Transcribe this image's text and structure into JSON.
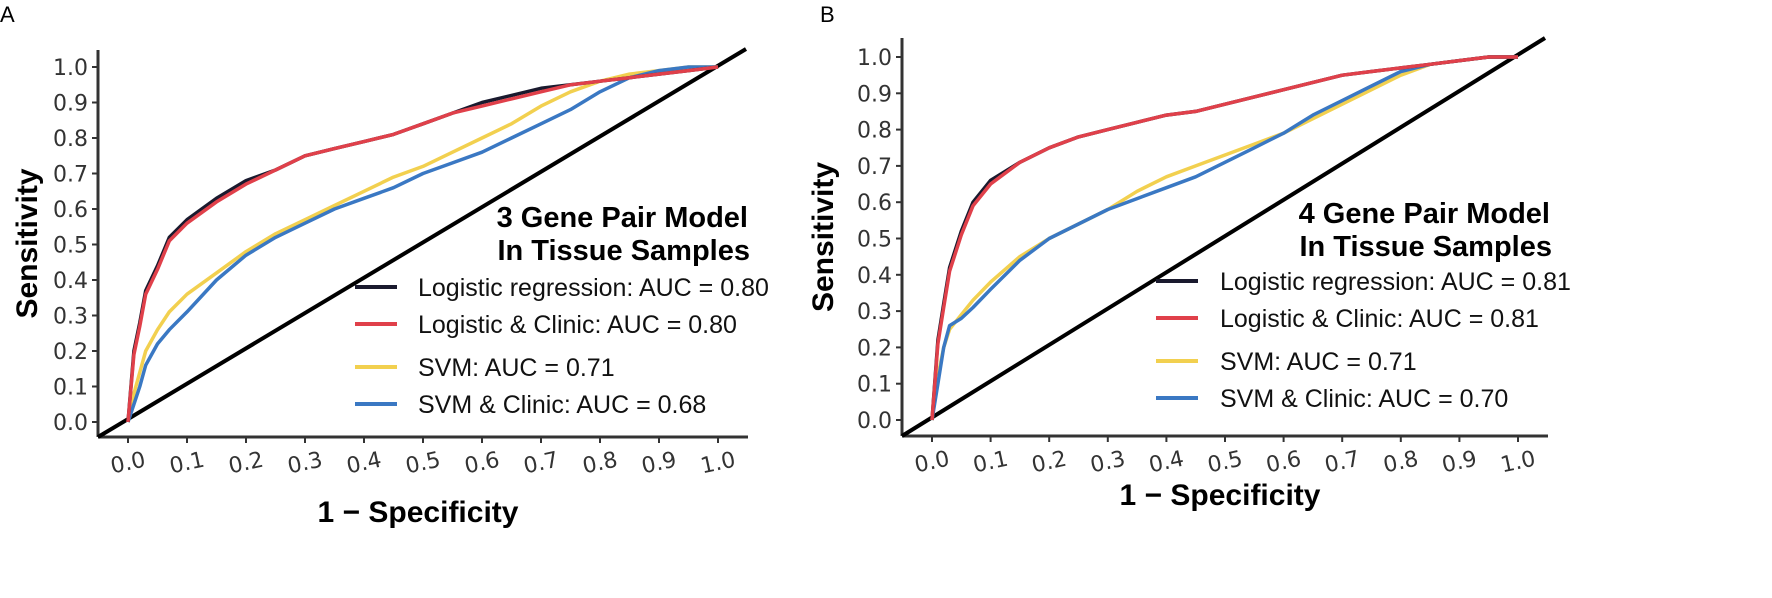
{
  "chart_data": [
    {
      "type": "line",
      "panel_label": "A",
      "title_lines": [
        "3 Gene Pair Model",
        "In Tissue Samples"
      ],
      "xlabel": "1 − Specificity",
      "ylabel": "Sensitivity",
      "xlim": [
        0,
        1
      ],
      "ylim": [
        0,
        1
      ],
      "xticks": [
        "0.0",
        "0.1",
        "0.2",
        "0.3",
        "0.4",
        "0.5",
        "0.6",
        "0.7",
        "0.8",
        "0.9",
        "1.0"
      ],
      "yticks": [
        "0.0",
        "0.1",
        "0.2",
        "0.3",
        "0.4",
        "0.5",
        "0.6",
        "0.7",
        "0.8",
        "0.9",
        "1.0"
      ],
      "legend_position": "bottom-right",
      "diagonal": true,
      "series": [
        {
          "name": "Logistic regression: AUC = 0.80",
          "color": "#1a1a2e",
          "x": [
            0,
            0.01,
            0.02,
            0.03,
            0.05,
            0.07,
            0.1,
            0.15,
            0.2,
            0.25,
            0.3,
            0.35,
            0.4,
            0.45,
            0.5,
            0.55,
            0.6,
            0.65,
            0.7,
            0.75,
            0.8,
            0.85,
            0.9,
            0.95,
            1.0
          ],
          "y": [
            0,
            0.2,
            0.28,
            0.37,
            0.44,
            0.52,
            0.57,
            0.63,
            0.68,
            0.71,
            0.75,
            0.77,
            0.79,
            0.81,
            0.84,
            0.87,
            0.9,
            0.92,
            0.94,
            0.95,
            0.96,
            0.97,
            0.98,
            0.99,
            1.0
          ]
        },
        {
          "name": "Logistic & Clinic: AUC = 0.80",
          "color": "#e0404a",
          "x": [
            0,
            0.01,
            0.02,
            0.03,
            0.05,
            0.07,
            0.1,
            0.15,
            0.2,
            0.25,
            0.3,
            0.35,
            0.4,
            0.45,
            0.5,
            0.55,
            0.6,
            0.65,
            0.7,
            0.75,
            0.8,
            0.85,
            0.9,
            0.95,
            1.0
          ],
          "y": [
            0,
            0.19,
            0.27,
            0.36,
            0.43,
            0.51,
            0.56,
            0.62,
            0.67,
            0.71,
            0.75,
            0.77,
            0.79,
            0.81,
            0.84,
            0.87,
            0.89,
            0.91,
            0.93,
            0.95,
            0.96,
            0.97,
            0.98,
            0.99,
            1.0
          ]
        },
        {
          "name": "SVM: AUC = 0.71",
          "color": "#f2d04f",
          "x": [
            0,
            0.01,
            0.02,
            0.03,
            0.05,
            0.07,
            0.1,
            0.15,
            0.2,
            0.25,
            0.3,
            0.35,
            0.4,
            0.45,
            0.5,
            0.55,
            0.6,
            0.65,
            0.7,
            0.75,
            0.8,
            0.85,
            0.9,
            0.95,
            1.0
          ],
          "y": [
            0,
            0.08,
            0.14,
            0.2,
            0.26,
            0.31,
            0.36,
            0.42,
            0.48,
            0.53,
            0.57,
            0.61,
            0.65,
            0.69,
            0.72,
            0.76,
            0.8,
            0.84,
            0.89,
            0.93,
            0.96,
            0.98,
            0.99,
            1.0,
            1.0
          ]
        },
        {
          "name": "SVM & Clinic: AUC = 0.68",
          "color": "#3a78c3",
          "x": [
            0,
            0.01,
            0.02,
            0.03,
            0.05,
            0.07,
            0.1,
            0.15,
            0.2,
            0.25,
            0.3,
            0.35,
            0.4,
            0.45,
            0.5,
            0.55,
            0.6,
            0.65,
            0.7,
            0.75,
            0.8,
            0.85,
            0.9,
            0.95,
            1.0
          ],
          "y": [
            0,
            0.05,
            0.1,
            0.16,
            0.22,
            0.26,
            0.31,
            0.4,
            0.47,
            0.52,
            0.56,
            0.6,
            0.63,
            0.66,
            0.7,
            0.73,
            0.76,
            0.8,
            0.84,
            0.88,
            0.93,
            0.97,
            0.99,
            1.0,
            1.0
          ]
        }
      ]
    },
    {
      "type": "line",
      "panel_label": "B",
      "title_lines": [
        "4 Gene Pair Model",
        "In Tissue Samples"
      ],
      "xlabel": "1 − Specificity",
      "ylabel": "Sensitivity",
      "xlim": [
        0,
        1
      ],
      "ylim": [
        0,
        1
      ],
      "xticks": [
        "0.0",
        "0.1",
        "0.2",
        "0.3",
        "0.4",
        "0.5",
        "0.6",
        "0.7",
        "0.8",
        "0.9",
        "1.0"
      ],
      "yticks": [
        "0.0",
        "0.1",
        "0.2",
        "0.3",
        "0.4",
        "0.5",
        "0.6",
        "0.7",
        "0.8",
        "0.9",
        "1.0"
      ],
      "legend_position": "bottom-right",
      "diagonal": true,
      "series": [
        {
          "name": "Logistic regression: AUC = 0.81",
          "color": "#1a1a2e",
          "x": [
            0,
            0.01,
            0.02,
            0.03,
            0.05,
            0.07,
            0.1,
            0.15,
            0.2,
            0.25,
            0.3,
            0.35,
            0.4,
            0.45,
            0.5,
            0.55,
            0.6,
            0.65,
            0.7,
            0.75,
            0.8,
            0.85,
            0.9,
            0.95,
            1.0
          ],
          "y": [
            0,
            0.22,
            0.32,
            0.42,
            0.52,
            0.6,
            0.66,
            0.71,
            0.75,
            0.78,
            0.8,
            0.82,
            0.84,
            0.85,
            0.87,
            0.89,
            0.91,
            0.93,
            0.95,
            0.96,
            0.97,
            0.98,
            0.99,
            1.0,
            1.0
          ]
        },
        {
          "name": "Logistic & Clinic: AUC = 0.81",
          "color": "#e0404a",
          "x": [
            0,
            0.01,
            0.02,
            0.03,
            0.05,
            0.07,
            0.1,
            0.15,
            0.2,
            0.25,
            0.3,
            0.35,
            0.4,
            0.45,
            0.5,
            0.55,
            0.6,
            0.65,
            0.7,
            0.75,
            0.8,
            0.85,
            0.9,
            0.95,
            1.0
          ],
          "y": [
            0,
            0.21,
            0.31,
            0.41,
            0.51,
            0.59,
            0.65,
            0.71,
            0.75,
            0.78,
            0.8,
            0.82,
            0.84,
            0.85,
            0.87,
            0.89,
            0.91,
            0.93,
            0.95,
            0.96,
            0.97,
            0.98,
            0.99,
            1.0,
            1.0
          ]
        },
        {
          "name": "SVM: AUC = 0.71",
          "color": "#f2d04f",
          "x": [
            0,
            0.01,
            0.02,
            0.03,
            0.05,
            0.07,
            0.1,
            0.15,
            0.2,
            0.25,
            0.3,
            0.35,
            0.4,
            0.45,
            0.5,
            0.55,
            0.6,
            0.65,
            0.7,
            0.75,
            0.8,
            0.85,
            0.9,
            0.95,
            1.0
          ],
          "y": [
            0,
            0.12,
            0.2,
            0.25,
            0.29,
            0.33,
            0.38,
            0.45,
            0.5,
            0.54,
            0.58,
            0.63,
            0.67,
            0.7,
            0.73,
            0.76,
            0.79,
            0.83,
            0.87,
            0.91,
            0.95,
            0.98,
            0.99,
            1.0,
            1.0
          ]
        },
        {
          "name": "SVM & Clinic: AUC = 0.70",
          "color": "#3a78c3",
          "x": [
            0,
            0.01,
            0.02,
            0.03,
            0.05,
            0.07,
            0.1,
            0.15,
            0.2,
            0.25,
            0.3,
            0.35,
            0.4,
            0.45,
            0.5,
            0.55,
            0.6,
            0.65,
            0.7,
            0.75,
            0.8,
            0.85,
            0.9,
            0.95,
            1.0
          ],
          "y": [
            0,
            0.1,
            0.2,
            0.26,
            0.28,
            0.31,
            0.36,
            0.44,
            0.5,
            0.54,
            0.58,
            0.61,
            0.64,
            0.67,
            0.71,
            0.75,
            0.79,
            0.84,
            0.88,
            0.92,
            0.96,
            0.98,
            0.99,
            1.0,
            1.0
          ]
        }
      ]
    }
  ]
}
